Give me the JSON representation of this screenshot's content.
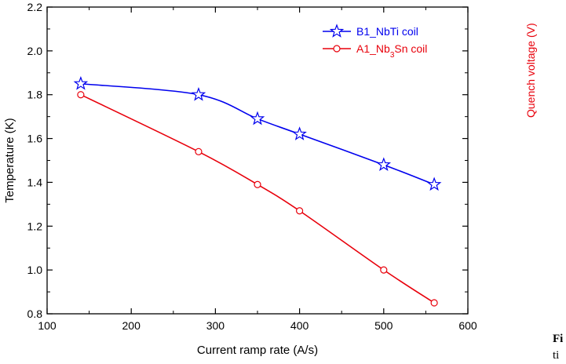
{
  "chart_data": {
    "type": "line",
    "title": "",
    "xlabel": "Current ramp rate (A/s)",
    "ylabel": "Temperature (K)",
    "xlim": [
      100,
      600
    ],
    "ylim": [
      0.8,
      2.2
    ],
    "xticks": [
      100,
      200,
      300,
      400,
      500,
      600
    ],
    "yticks": [
      0.8,
      1.0,
      1.2,
      1.4,
      1.6,
      1.8,
      2.0,
      2.2
    ],
    "xtick_labels": [
      "100",
      "200",
      "300",
      "400",
      "500",
      "600"
    ],
    "ytick_labels": [
      "0.8",
      "1.0",
      "1.2",
      "1.4",
      "1.6",
      "1.8",
      "2.0",
      "2.2"
    ],
    "grid": false,
    "legend_position": "top-right",
    "series": [
      {
        "name": "B1_NbTi coil",
        "label_parts": [
          {
            "text": "B1_NbTi coil",
            "sub": false
          }
        ],
        "color": "#0000ee",
        "marker": "star",
        "x": [
          140,
          280,
          350,
          400,
          500,
          560
        ],
        "y": [
          1.85,
          1.8,
          1.69,
          1.62,
          1.48,
          1.39
        ]
      },
      {
        "name": "A1_Nb3Sn coil",
        "label_parts": [
          {
            "text": "A1_Nb",
            "sub": false
          },
          {
            "text": "3",
            "sub": true
          },
          {
            "text": "Sn coil",
            "sub": false
          }
        ],
        "color": "#e8000b",
        "marker": "circle",
        "x": [
          140,
          280,
          350,
          400,
          500,
          560
        ],
        "y": [
          1.8,
          1.54,
          1.39,
          1.27,
          1.0,
          0.85
        ]
      }
    ]
  },
  "side_panel": {
    "right_axis_title": "Quench voltage (V)",
    "right_axis_color": "#e8000b",
    "figure_label": "Fi",
    "caption_fragment": "ti"
  }
}
